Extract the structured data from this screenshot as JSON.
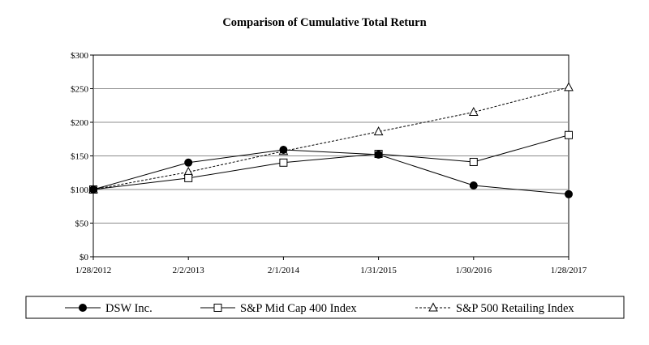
{
  "chart_data": {
    "type": "line",
    "title": "Comparison  of Cumulative  Total Return",
    "xlabel": "",
    "ylabel": "",
    "categories": [
      "1/28/2012",
      "2/2/2013",
      "2/1/2014",
      "1/31/2015",
      "1/30/2016",
      "1/28/2017"
    ],
    "yticks": [
      "$0",
      "$50",
      "$100",
      "$150",
      "$200",
      "$250",
      "$300"
    ],
    "ylim": [
      0,
      300
    ],
    "grid": true,
    "legend_position": "bottom",
    "series": [
      {
        "name": "DSW Inc.",
        "values": [
          100,
          140,
          159,
          152,
          106,
          93
        ],
        "marker": "filled-circle",
        "line": "solid"
      },
      {
        "name": "S&P Mid Cap 400 Index",
        "values": [
          100,
          117,
          140,
          153,
          141,
          181
        ],
        "marker": "open-square",
        "line": "solid"
      },
      {
        "name": "S&P 500 Retailing Index",
        "values": [
          100,
          126,
          157,
          186,
          215,
          252
        ],
        "marker": "open-triangle",
        "line": "dashed"
      }
    ]
  }
}
